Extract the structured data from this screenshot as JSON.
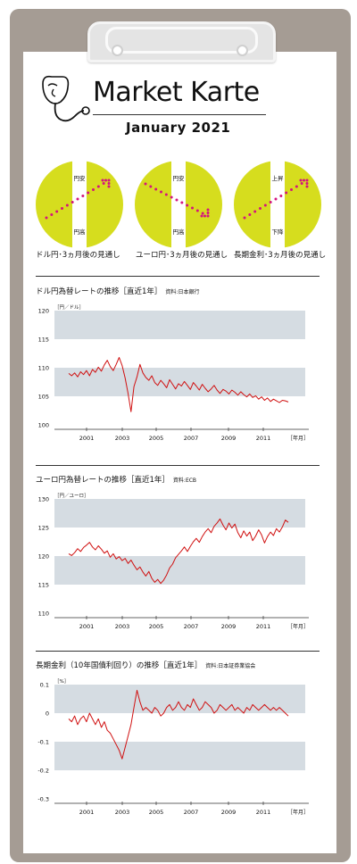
{
  "header": {
    "title": "Market Karte",
    "subtitle": "January   2021"
  },
  "outlook": [
    {
      "top_label": "円安",
      "bottom_label": "円高",
      "caption": "ドル円･3ヵ月後の見通し",
      "direction": "up"
    },
    {
      "top_label": "円安",
      "bottom_label": "円高",
      "caption": "ユーロ円･3ヵ月後の見通し",
      "direction": "down"
    },
    {
      "top_label": "上昇",
      "bottom_label": "下降",
      "caption": "長期金利･3ヵ月後の見通し",
      "direction": "up"
    }
  ],
  "colors": {
    "circle": "#d6dd1e",
    "dots": "#d4147e",
    "band": "#d5dce2",
    "line": "#d01010",
    "board": "#a59c94"
  },
  "sections": [
    {
      "title": "ドル円為替レートの推移［直近1年］",
      "source": "資料:日本銀行"
    },
    {
      "title": "ユーロ円為替レートの推移［直近1年］",
      "source": "資料:ECB"
    },
    {
      "title": "長期金利（10年国債利回り）の推移［直近1年］",
      "source": "資料:日本証券業協会"
    }
  ],
  "chart_data": [
    {
      "type": "line",
      "unit": "［円／ドル］",
      "xlabel": "［年月］",
      "x_ticks": [
        "2001",
        "2003",
        "2005",
        "2007",
        "2009",
        "2011"
      ],
      "y_ticks": [
        "120",
        "115",
        "110",
        "105",
        "100"
      ],
      "ylim": [
        100,
        120
      ],
      "series": [
        {
          "values": [
            109,
            108.6,
            109.1,
            108.4,
            109.3,
            108.8,
            109.5,
            108.6,
            109.7,
            109.2,
            110.1,
            109.4,
            110.5,
            111.3,
            110.2,
            109.5,
            110.6,
            111.8,
            110.4,
            108.2,
            105.5,
            102.3,
            106.7,
            108.4,
            110.6,
            109.1,
            108.3,
            107.8,
            108.6,
            107.4,
            106.9,
            107.8,
            107.2,
            106.5,
            107.9,
            107.1,
            106.3,
            107.2,
            106.8,
            107.6,
            106.9,
            106.2,
            107.4,
            106.8,
            106.1,
            107.1,
            106.4,
            105.8,
            106.3,
            106.9,
            106.1,
            105.5,
            106.2,
            105.9,
            105.4,
            106.1,
            105.7,
            105.2,
            105.8,
            105.3,
            104.9,
            105.4,
            104.8,
            105.1,
            104.5,
            104.9,
            104.3,
            104.7,
            104.1,
            104.5,
            104.2,
            103.9,
            104.3,
            104.2,
            104
          ]
        }
      ]
    },
    {
      "type": "line",
      "unit": "［円／ユーロ］",
      "xlabel": "［年月］",
      "x_ticks": [
        "2001",
        "2003",
        "2005",
        "2007",
        "2009",
        "2011"
      ],
      "y_ticks": [
        "130",
        "125",
        "120",
        "115",
        "110"
      ],
      "ylim": [
        110,
        130
      ],
      "series": [
        {
          "values": [
            120.4,
            120.1,
            120.6,
            121.3,
            120.8,
            121.5,
            121.9,
            122.4,
            121.6,
            121.1,
            121.8,
            121.2,
            120.5,
            120.9,
            119.8,
            120.4,
            119.5,
            119.9,
            119.2,
            119.6,
            118.7,
            119.3,
            118.4,
            117.6,
            118.1,
            117.2,
            116.5,
            117.3,
            116.1,
            115.4,
            115.9,
            115.2,
            115.8,
            116.7,
            117.9,
            118.6,
            119.7,
            120.3,
            120.9,
            121.6,
            120.8,
            121.7,
            122.5,
            123.1,
            122.4,
            123.4,
            124.2,
            124.8,
            124.1,
            125.2,
            125.8,
            126.5,
            125.4,
            124.6,
            125.8,
            124.9,
            125.6,
            124.1,
            123.2,
            124.4,
            123.5,
            124.2,
            122.7,
            123.5,
            124.6,
            123.7,
            122.3,
            123.4,
            124.2,
            123.6,
            124.8,
            124.2,
            125.1,
            126.3,
            125.9
          ]
        }
      ]
    },
    {
      "type": "line",
      "unit": "［%］",
      "xlabel": "［年月］",
      "x_ticks": [
        "2001",
        "2003",
        "2005",
        "2007",
        "2009",
        "2011"
      ],
      "y_ticks": [
        "0.1",
        "0",
        "-0.1",
        "-0.2",
        "-0.3"
      ],
      "ylim": [
        -0.3,
        0.1
      ],
      "series": [
        {
          "values": [
            -0.02,
            -0.03,
            -0.01,
            -0.04,
            -0.02,
            -0.01,
            -0.03,
            0.0,
            -0.02,
            -0.04,
            -0.02,
            -0.05,
            -0.03,
            -0.06,
            -0.07,
            -0.09,
            -0.11,
            -0.13,
            -0.16,
            -0.12,
            -0.08,
            -0.04,
            0.02,
            0.08,
            0.04,
            0.01,
            0.02,
            0.01,
            0.0,
            0.02,
            0.01,
            -0.01,
            0.0,
            0.02,
            0.03,
            0.01,
            0.02,
            0.04,
            0.02,
            0.01,
            0.03,
            0.02,
            0.05,
            0.03,
            0.01,
            0.02,
            0.04,
            0.03,
            0.02,
            0.0,
            0.01,
            0.03,
            0.02,
            0.01,
            0.02,
            0.03,
            0.01,
            0.02,
            0.01,
            0.0,
            0.02,
            0.01,
            0.03,
            0.02,
            0.01,
            0.02,
            0.03,
            0.02,
            0.01,
            0.02,
            0.01,
            0.02,
            0.01,
            0.0,
            -0.01
          ]
        }
      ]
    }
  ]
}
